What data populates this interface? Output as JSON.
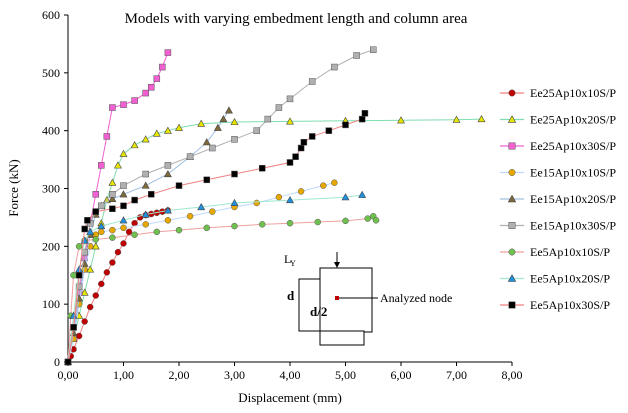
{
  "chart_data": {
    "type": "scatter",
    "title": "Models with varying embedment length and column area",
    "xlabel": "Displacement (mm)",
    "ylabel": "Force (kN)",
    "xlim": [
      0,
      8
    ],
    "ylim": [
      0,
      600
    ],
    "x_ticks": [
      "0,00",
      "1,00",
      "2,00",
      "3,00",
      "4,00",
      "5,00",
      "6,00",
      "7,00",
      "8,00"
    ],
    "y_ticks": [
      "0",
      "100",
      "200",
      "300",
      "400",
      "500",
      "600"
    ],
    "grid": false,
    "legend_position": "right",
    "series": [
      {
        "name": "Ee25Ap10x10S/P",
        "marker": "circle",
        "color": "#C00000",
        "line_color": "#F08080",
        "points": [
          [
            0,
            0
          ],
          [
            0.05,
            10
          ],
          [
            0.1,
            22
          ],
          [
            0.2,
            45
          ],
          [
            0.3,
            70
          ],
          [
            0.4,
            95
          ],
          [
            0.5,
            115
          ],
          [
            0.6,
            135
          ],
          [
            0.7,
            155
          ],
          [
            0.8,
            172
          ],
          [
            0.9,
            190
          ],
          [
            1.0,
            205
          ],
          [
            1.1,
            225
          ],
          [
            1.2,
            240
          ],
          [
            1.3,
            250
          ],
          [
            1.4,
            254
          ],
          [
            1.5,
            256
          ],
          [
            1.6,
            258
          ],
          [
            1.7,
            260
          ],
          [
            1.8,
            262
          ]
        ]
      },
      {
        "name": "Ee25Ap10x20S/P",
        "marker": "triangle",
        "color": "#E6E600",
        "line_color": "#7FDDB0",
        "points": [
          [
            0,
            0
          ],
          [
            0.1,
            40
          ],
          [
            0.2,
            80
          ],
          [
            0.3,
            120
          ],
          [
            0.4,
            160
          ],
          [
            0.5,
            200
          ],
          [
            0.6,
            240
          ],
          [
            0.7,
            280
          ],
          [
            0.8,
            310
          ],
          [
            0.9,
            340
          ],
          [
            1.0,
            360
          ],
          [
            1.2,
            375
          ],
          [
            1.4,
            385
          ],
          [
            1.6,
            395
          ],
          [
            1.8,
            400
          ],
          [
            2.0,
            405
          ],
          [
            2.4,
            412
          ],
          [
            3.0,
            415
          ],
          [
            4.0,
            416
          ],
          [
            5.0,
            417
          ],
          [
            6.0,
            418
          ],
          [
            7.0,
            419
          ],
          [
            7.45,
            420
          ]
        ]
      },
      {
        "name": "Ee25Ap10x30S/P",
        "marker": "square",
        "color": "#F060D0",
        "line_color": "#F060D0",
        "points": [
          [
            0,
            0
          ],
          [
            0.1,
            60
          ],
          [
            0.2,
            120
          ],
          [
            0.3,
            180
          ],
          [
            0.4,
            240
          ],
          [
            0.5,
            290
          ],
          [
            0.6,
            340
          ],
          [
            0.7,
            390
          ],
          [
            0.8,
            440
          ],
          [
            1.0,
            445
          ],
          [
            1.2,
            452
          ],
          [
            1.4,
            465
          ],
          [
            1.5,
            475
          ],
          [
            1.6,
            490
          ],
          [
            1.7,
            510
          ],
          [
            1.8,
            535
          ]
        ]
      },
      {
        "name": "Ee15Ap10x10S/P",
        "marker": "circle",
        "color": "#E6A800",
        "line_color": "#C0D8FF",
        "points": [
          [
            0,
            0
          ],
          [
            0.1,
            40
          ],
          [
            0.2,
            100
          ],
          [
            0.3,
            160
          ],
          [
            0.4,
            200
          ],
          [
            0.5,
            220
          ],
          [
            0.6,
            225
          ],
          [
            0.8,
            228
          ],
          [
            1.0,
            232
          ],
          [
            1.4,
            238
          ],
          [
            1.8,
            245
          ],
          [
            2.2,
            252
          ],
          [
            2.6,
            260
          ],
          [
            3.0,
            268
          ],
          [
            3.4,
            275
          ],
          [
            3.8,
            285
          ],
          [
            4.2,
            295
          ],
          [
            4.6,
            305
          ],
          [
            4.8,
            310
          ]
        ]
      },
      {
        "name": "Ee15Ap10x20S/P",
        "marker": "triangle",
        "color": "#7F6A3C",
        "line_color": "#A0C0E0",
        "points": [
          [
            0,
            0
          ],
          [
            0.1,
            50
          ],
          [
            0.2,
            110
          ],
          [
            0.3,
            170
          ],
          [
            0.4,
            220
          ],
          [
            0.5,
            255
          ],
          [
            0.6,
            270
          ],
          [
            0.8,
            282
          ],
          [
            1.0,
            290
          ],
          [
            1.4,
            305
          ],
          [
            1.8,
            325
          ],
          [
            2.2,
            355
          ],
          [
            2.5,
            380
          ],
          [
            2.7,
            405
          ],
          [
            2.8,
            420
          ],
          [
            2.9,
            435
          ]
        ]
      },
      {
        "name": "Ee15Ap10x30S/P",
        "marker": "square",
        "color": "#B0B0B0",
        "line_color": "#B0B0B0",
        "points": [
          [
            0,
            0
          ],
          [
            0.1,
            60
          ],
          [
            0.2,
            130
          ],
          [
            0.3,
            190
          ],
          [
            0.4,
            240
          ],
          [
            0.5,
            260
          ],
          [
            0.6,
            270
          ],
          [
            0.8,
            290
          ],
          [
            1.0,
            305
          ],
          [
            1.4,
            325
          ],
          [
            1.8,
            340
          ],
          [
            2.2,
            355
          ],
          [
            2.6,
            370
          ],
          [
            3.0,
            385
          ],
          [
            3.4,
            400
          ],
          [
            3.6,
            420
          ],
          [
            3.8,
            440
          ],
          [
            4.0,
            455
          ],
          [
            4.4,
            485
          ],
          [
            4.8,
            510
          ],
          [
            5.2,
            530
          ],
          [
            5.5,
            540
          ]
        ]
      },
      {
        "name": "Ee5Ap10x10S/P",
        "marker": "circle",
        "color": "#70C050",
        "line_color": "#F0A0A0",
        "points": [
          [
            0,
            0
          ],
          [
            0.05,
            80
          ],
          [
            0.1,
            150
          ],
          [
            0.2,
            200
          ],
          [
            0.3,
            210
          ],
          [
            0.5,
            212
          ],
          [
            0.8,
            215
          ],
          [
            1.2,
            220
          ],
          [
            1.6,
            225
          ],
          [
            2.0,
            228
          ],
          [
            2.5,
            232
          ],
          [
            3.0,
            235
          ],
          [
            3.5,
            238
          ],
          [
            4.0,
            240
          ],
          [
            4.5,
            242
          ],
          [
            5.0,
            244
          ],
          [
            5.4,
            248
          ],
          [
            5.5,
            252
          ],
          [
            5.55,
            245
          ]
        ]
      },
      {
        "name": "Ee5Ap10x20S/P",
        "marker": "triangle",
        "color": "#2090E0",
        "line_color": "#A0E8D0",
        "points": [
          [
            0,
            0
          ],
          [
            0.1,
            80
          ],
          [
            0.2,
            160
          ],
          [
            0.3,
            210
          ],
          [
            0.4,
            225
          ],
          [
            0.6,
            235
          ],
          [
            1.0,
            245
          ],
          [
            1.4,
            255
          ],
          [
            1.8,
            262
          ],
          [
            2.4,
            268
          ],
          [
            3.0,
            275
          ],
          [
            4.0,
            280
          ],
          [
            5.0,
            285
          ],
          [
            5.3,
            289
          ]
        ]
      },
      {
        "name": "Ee5Ap10x30S/P",
        "marker": "square",
        "color": "#000000",
        "line_color": "#F08080",
        "points": [
          [
            0,
            0
          ],
          [
            0.1,
            60
          ],
          [
            0.2,
            150
          ],
          [
            0.3,
            230
          ],
          [
            0.35,
            245
          ],
          [
            0.5,
            260
          ],
          [
            0.8,
            265
          ],
          [
            1.0,
            270
          ],
          [
            1.2,
            280
          ],
          [
            1.5,
            290
          ],
          [
            2.0,
            305
          ],
          [
            2.5,
            315
          ],
          [
            3.0,
            325
          ],
          [
            3.5,
            335
          ],
          [
            4.0,
            345
          ],
          [
            4.1,
            355
          ],
          [
            4.2,
            370
          ],
          [
            4.25,
            380
          ],
          [
            4.4,
            390
          ],
          [
            4.7,
            400
          ],
          [
            5.0,
            410
          ],
          [
            5.3,
            420
          ],
          [
            5.35,
            430
          ]
        ]
      }
    ]
  },
  "inset": {
    "axis_label": "L",
    "axis_sub": "Y",
    "depth_label": "d",
    "half_depth_label": "d/2",
    "node_label": "Analyzed node"
  }
}
